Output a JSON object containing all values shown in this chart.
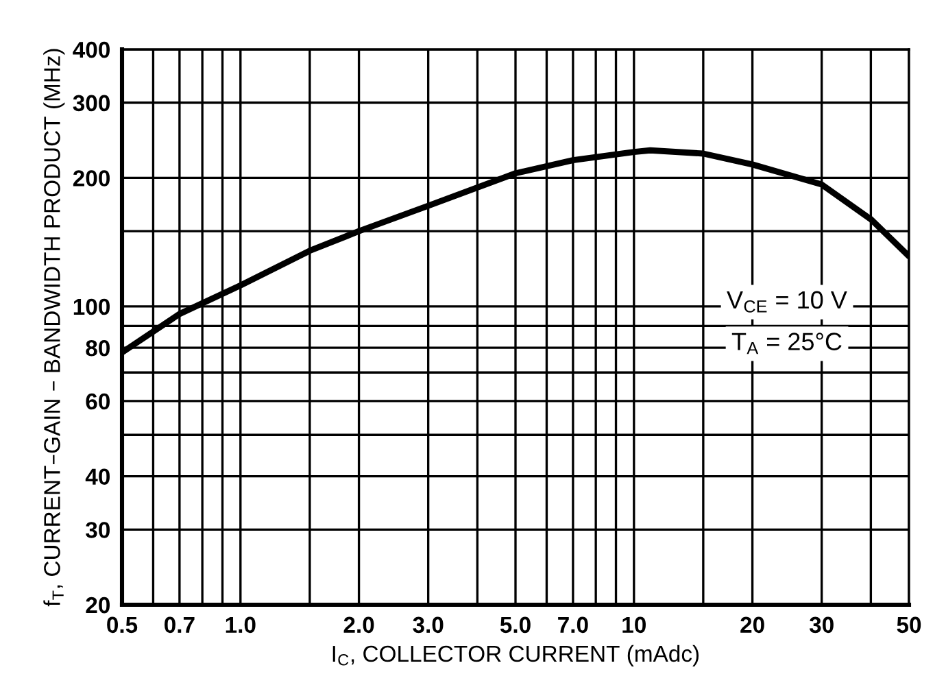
{
  "chart_data": {
    "type": "line",
    "xlabel": "I$_{C}$, COLLECTOR CURRENT (mAdc)",
    "ylabel": "f$_{T}$, CURRENT–GAIN – BANDWIDTH PRODUCT (MHz)",
    "log": "xy",
    "grid": true,
    "marker": "none",
    "line_style": "solid",
    "xlim": [
      0.5,
      50
    ],
    "ylim": [
      20,
      400
    ],
    "xticks": [
      {
        "value": 0.5,
        "label": "0.5"
      },
      {
        "value": 0.6,
        "label": null
      },
      {
        "value": 0.7,
        "label": "0.7"
      },
      {
        "value": 0.8,
        "label": null
      },
      {
        "value": 0.9,
        "label": null
      },
      {
        "value": 1.0,
        "label": "1.0"
      },
      {
        "value": 1.5,
        "label": null
      },
      {
        "value": 2.0,
        "label": "2.0"
      },
      {
        "value": 3.0,
        "label": "3.0"
      },
      {
        "value": 4.0,
        "label": null
      },
      {
        "value": 5.0,
        "label": "5.0"
      },
      {
        "value": 6.0,
        "label": null
      },
      {
        "value": 7.0,
        "label": "7.0"
      },
      {
        "value": 8.0,
        "label": null
      },
      {
        "value": 9.0,
        "label": null
      },
      10,
      {
        "value": 15,
        "label": null
      },
      20,
      30,
      {
        "value": 40,
        "label": null
      },
      50
    ],
    "yticks": [
      20,
      30,
      40,
      {
        "value": 50,
        "label": null
      },
      60,
      {
        "value": 70,
        "label": null
      },
      80,
      {
        "value": 90,
        "label": null
      },
      100,
      {
        "value": 150,
        "label": null
      },
      200,
      300,
      400
    ],
    "annotations": [
      "V$_{CE}$ = 10 V",
      "T$_{A}$ = 25°C"
    ],
    "x": [
      0.5,
      0.7,
      1.0,
      1.5,
      2.0,
      3.0,
      5.0,
      7.0,
      10,
      11,
      15,
      20,
      30,
      40,
      50
    ],
    "series": [
      {
        "color": "#000000",
        "values": [
          78,
          96,
          112,
          135,
          150,
          172,
          205,
          220,
          230,
          232,
          228,
          215,
          193,
          160,
          131
        ]
      }
    ]
  }
}
